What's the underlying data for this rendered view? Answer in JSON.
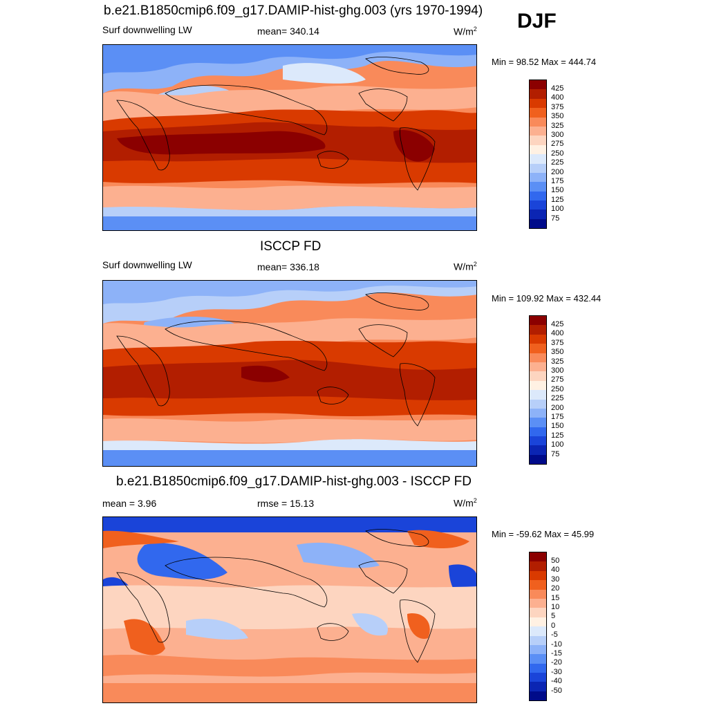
{
  "season": "DJF",
  "panels": [
    {
      "title": "b.e21.B1850cmip6.f09_g17.DAMIP-hist-ghg.003 (yrs 1970-1994)",
      "left_label": "Surf downwelling LW",
      "center_label": "mean= 340.14",
      "units": "W/m",
      "units_sup": "2",
      "minmax": "Min =  98.52 Max = 444.74",
      "colorbar_labels": [
        "425",
        "400",
        "375",
        "350",
        "325",
        "300",
        "275",
        "250",
        "225",
        "200",
        "175",
        "150",
        "125",
        "100",
        "75"
      ]
    },
    {
      "title": "ISCCP FD",
      "left_label": "Surf downwelling LW",
      "center_label": "mean= 336.18",
      "units": "W/m",
      "units_sup": "2",
      "minmax": "Min = 109.92 Max = 432.44",
      "colorbar_labels": [
        "425",
        "400",
        "375",
        "350",
        "325",
        "300",
        "275",
        "250",
        "225",
        "200",
        "175",
        "150",
        "125",
        "100",
        "75"
      ]
    },
    {
      "title": "b.e21.B1850cmip6.f09_g17.DAMIP-hist-ghg.003 - ISCCP FD",
      "left_label": "mean =   3.96",
      "center_label": "rmse =  15.13",
      "units": "W/m",
      "units_sup": "2",
      "minmax": "Min = -59.62 Max =  45.99",
      "colorbar_labels": [
        "50",
        "40",
        "30",
        "20",
        "15",
        "10",
        "5",
        "0",
        "-5",
        "-10",
        "-15",
        "-20",
        "-30",
        "-40",
        "-50"
      ]
    }
  ],
  "colors": {
    "scale": [
      "#8b0000",
      "#b21e00",
      "#d93a00",
      "#f0601e",
      "#f98a5a",
      "#fcb090",
      "#fdd5c0",
      "#fff1e3",
      "#dce9fb",
      "#b7cff9",
      "#8db2f8",
      "#5b8ff5",
      "#3168ee",
      "#1a44d9",
      "#0b25b3",
      "#000b8a"
    ],
    "coast": "#000000"
  }
}
